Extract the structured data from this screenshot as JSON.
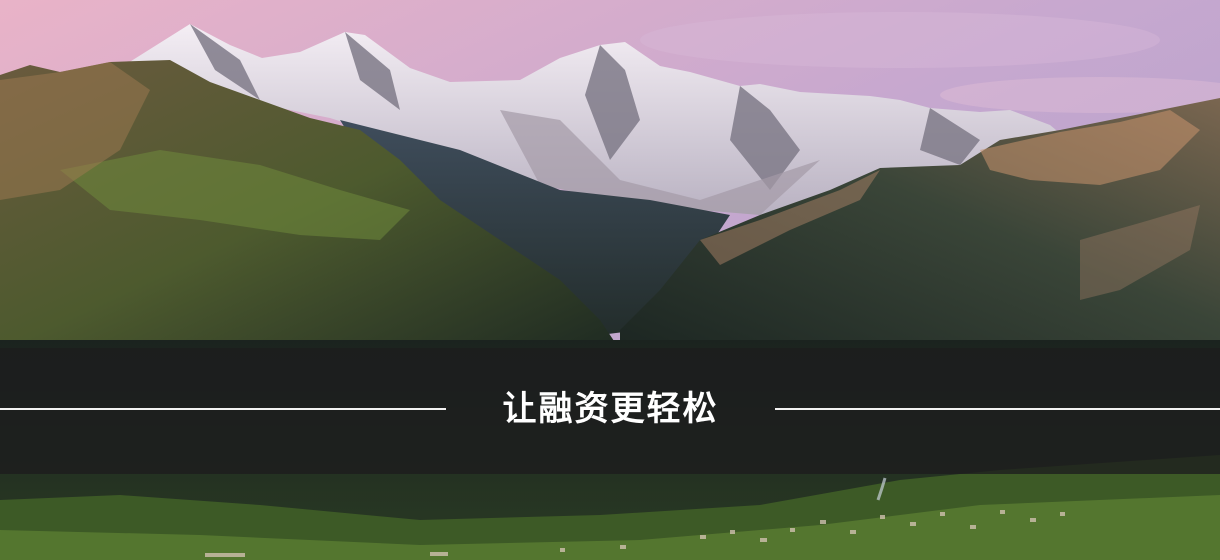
{
  "banner": {
    "headline": "让融资更轻松"
  },
  "scene": {
    "sky_top": "#b497bd",
    "sky_bottom": "#f2b9c6",
    "snow": "#f1eef3",
    "rock": "#8d8794",
    "forest": "#1f2a22",
    "meadow": "#5c7a36"
  }
}
